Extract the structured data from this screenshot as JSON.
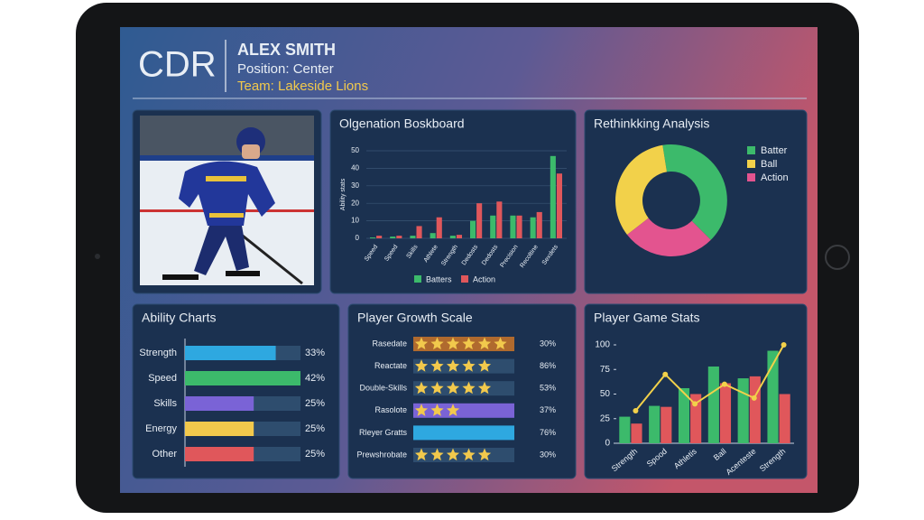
{
  "header": {
    "logo": "CDR",
    "name": "ALEX SMITH",
    "position": "Position: Center",
    "team": "Team: Lakeside Lions"
  },
  "chart_data": [
    {
      "type": "bar",
      "title": "Olgenation Boskboard",
      "y_label": "Ability stats",
      "categories": [
        "Speed",
        "Speed",
        "Skills",
        "Athlete",
        "Strength",
        "Dedosts",
        "Dedosts",
        "Precision",
        "Recoltine",
        "Sexdets"
      ],
      "series": [
        {
          "name": "Batters",
          "color": "#3cba6b",
          "values": [
            0.5,
            1,
            1.5,
            3,
            1.5,
            10,
            13,
            13,
            12,
            47
          ]
        },
        {
          "name": "Action",
          "color": "#e0575b",
          "values": [
            1.5,
            1.5,
            7,
            12,
            2,
            20,
            21,
            13,
            15,
            37
          ]
        }
      ],
      "ylim": [
        0,
        50
      ],
      "yticks": [
        0,
        10,
        20,
        30,
        40,
        50
      ],
      "grid": true,
      "legend": "bottom"
    },
    {
      "type": "donut",
      "title": "Rethinkking Analysis",
      "categories": [
        "Batter",
        "Ball",
        "Action"
      ],
      "values": [
        40,
        33,
        27
      ],
      "colors": [
        "#3cba6b",
        "#f2d14a",
        "#e3548f"
      ],
      "legend": "right"
    },
    {
      "type": "progress",
      "title": "Ability Charts",
      "categories": [
        "Strength",
        "Speed",
        "Skills",
        "Energy",
        "Other"
      ],
      "values": [
        33,
        42,
        25,
        25,
        25
      ],
      "value_labels": [
        "33%",
        "42%",
        "25%",
        "25%",
        "25%"
      ],
      "colors": [
        "#2ea8e0",
        "#3cba6b",
        "#7a63d6",
        "#f2c94c",
        "#e0575b"
      ]
    },
    {
      "type": "rating",
      "title": "Player Growth Scale",
      "rows": [
        {
          "label": "Rasedate",
          "stars": 6,
          "percent": "30%",
          "color": "#b06a2e"
        },
        {
          "label": "Reactate",
          "stars": 5,
          "percent": "86%",
          "color": "#2e4d6e"
        },
        {
          "label": "Double-Skills",
          "stars": 5,
          "percent": "53%",
          "color": "#2e4d6e"
        },
        {
          "label": "Rasolote",
          "stars": 3,
          "percent": "37%",
          "color": "#7a63d6"
        },
        {
          "label": "Rleyer Gratts",
          "stars": 0,
          "percent": "76%",
          "color": "#2ea8e0"
        },
        {
          "label": "Prewshrobate",
          "stars": 5,
          "percent": "30%",
          "color": "#2e4d6e"
        }
      ]
    },
    {
      "type": "combo",
      "title": "Player Game Stats",
      "categories": [
        "Strength",
        "Spood",
        "Athletis",
        "Ball",
        "Acenteste",
        "Strength"
      ],
      "series": [
        {
          "type": "bar",
          "color": "#3cba6b",
          "values": [
            27,
            38,
            56,
            78,
            66,
            94
          ]
        },
        {
          "type": "bar",
          "color": "#e0575b",
          "values": [
            20,
            37,
            50,
            61,
            68,
            50
          ]
        },
        {
          "type": "line",
          "color": "#f2d14a",
          "values": [
            33,
            70,
            40,
            60,
            46,
            100
          ]
        }
      ],
      "ylim": [
        0,
        100
      ],
      "yticks": [
        0,
        25,
        50,
        75,
        100
      ]
    }
  ]
}
